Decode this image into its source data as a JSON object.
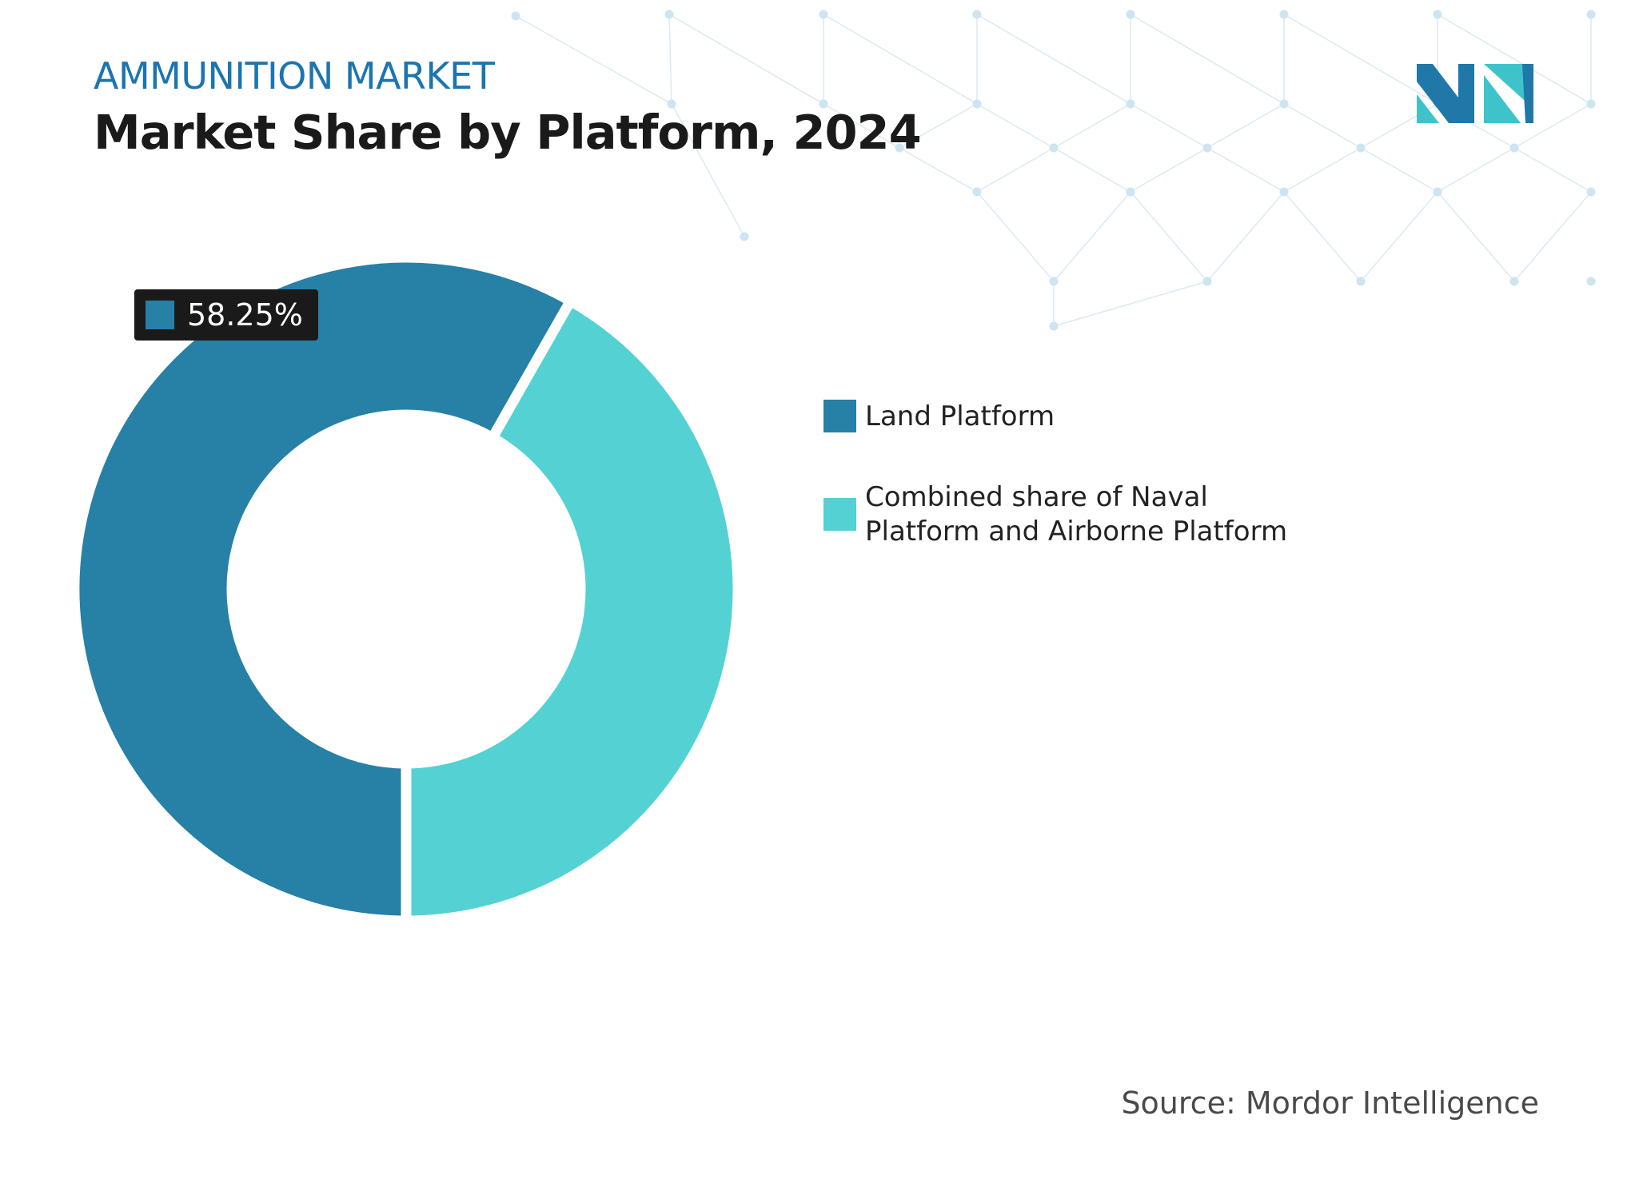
{
  "header": {
    "kicker": "AMMUNITION MARKET",
    "title": "Market Share by Platform, 2024"
  },
  "logo": {
    "name": "mordor-intelligence-logo",
    "colors": [
      "#1f78a8",
      "#3ec3cb"
    ]
  },
  "chart_data": {
    "type": "pie",
    "style": "donut",
    "title": "Market Share by Platform, 2024",
    "series": [
      {
        "name": "Land Platform",
        "value": 58.25,
        "color": "#2780a6"
      },
      {
        "name": "Combined share of Naval Platform and Airborne Platform",
        "value": 41.75,
        "color": "#54d1d3"
      }
    ],
    "data_labels": [
      {
        "series_index": 0,
        "text": "58.25%"
      }
    ],
    "legend_position": "right"
  },
  "source": "Source: Mordor Intelligence"
}
